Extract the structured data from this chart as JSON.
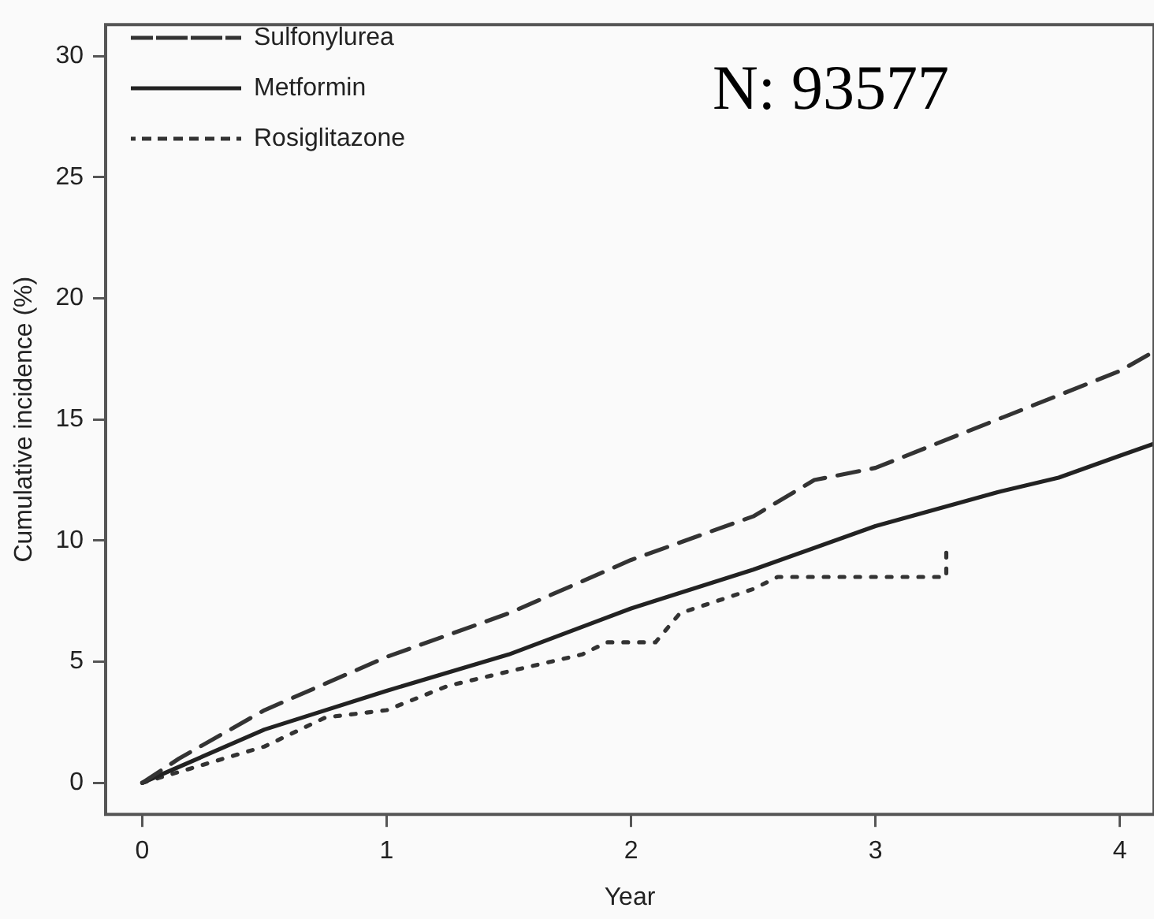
{
  "chart_data": {
    "type": "line",
    "xlabel": "Year",
    "ylabel": "Cumulative incidence (%)",
    "xlim": [
      -0.15,
      4.14
    ],
    "ylim": [
      -1.3,
      31.3
    ],
    "xticks": [
      0,
      1,
      2,
      3,
      4
    ],
    "yticks": [
      0,
      5,
      10,
      15,
      20,
      25,
      30
    ],
    "grid": false,
    "legend": "top left",
    "marker": "none",
    "annotations": [
      "N: 93577"
    ],
    "series": [
      {
        "name": "Sulfonylurea",
        "color": "#333333",
        "line_style": "dashed",
        "x": [
          0,
          0.15,
          0.5,
          1,
          1.5,
          2,
          2.5,
          2.75,
          3,
          3.25,
          3.5,
          3.75,
          4,
          4.14
        ],
        "values": [
          0,
          1,
          3,
          5.2,
          7,
          9.2,
          11,
          12.5,
          13,
          14,
          15,
          16,
          17,
          17.8
        ]
      },
      {
        "name": "Metformin",
        "color": "#222222",
        "line_style": "solid",
        "x": [
          0,
          0.5,
          1,
          1.5,
          2,
          2.5,
          3,
          3.5,
          3.75,
          4,
          4.14
        ],
        "values": [
          0,
          2.2,
          3.8,
          5.3,
          7.2,
          8.8,
          10.6,
          12,
          12.6,
          13.5,
          14
        ]
      },
      {
        "name": "Rosiglitazone",
        "color": "#333333",
        "line_style": "dotted",
        "x": [
          0,
          0.5,
          0.75,
          1,
          1.25,
          1.5,
          1.8,
          1.9,
          2.1,
          2.2,
          2.5,
          2.6,
          3.29,
          3.29
        ],
        "values": [
          0,
          1.5,
          2.7,
          3,
          4,
          4.6,
          5.3,
          5.8,
          5.8,
          7,
          8,
          8.5,
          8.5,
          9.8
        ]
      }
    ]
  }
}
